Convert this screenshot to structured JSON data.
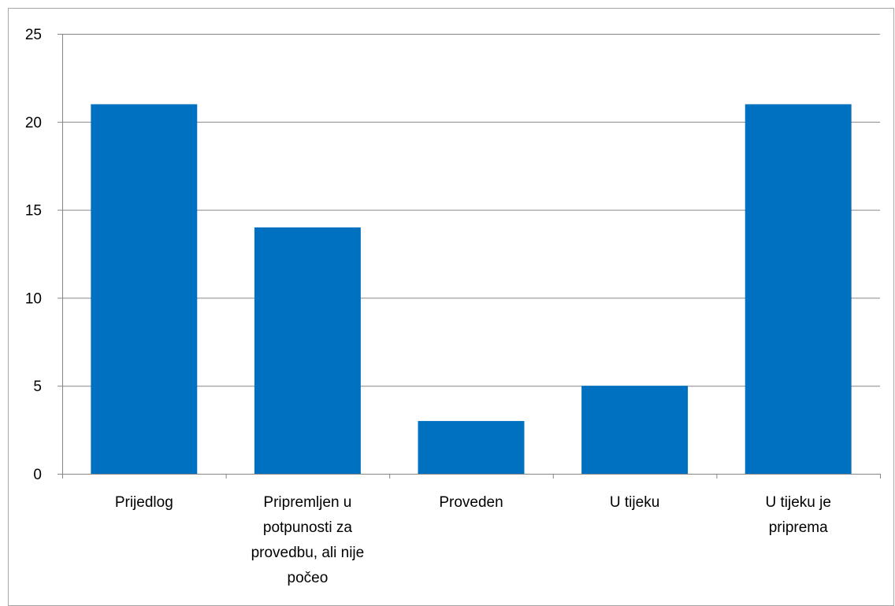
{
  "chart_data": {
    "type": "bar",
    "title": "",
    "xlabel": "",
    "ylabel": "",
    "categories": [
      "Prijedlog",
      "Pripremljen u potpunosti za provedbu, ali nije počeo",
      "Proveden",
      "U tijeku",
      "U tijeku je priprema"
    ],
    "category_lines": [
      [
        "Prijedlog"
      ],
      [
        "Pripremljen u",
        "potpunosti za",
        "provedbu, ali nije",
        "počeo"
      ],
      [
        "Proveden"
      ],
      [
        "U tijeku"
      ],
      [
        "U tijeku je",
        "priprema"
      ]
    ],
    "values": [
      21,
      14,
      3,
      5,
      21
    ],
    "ylim": [
      0,
      25
    ],
    "yticks": [
      0,
      5,
      10,
      15,
      20,
      25
    ],
    "grid": true,
    "legend": "none",
    "bar_color": "#0070c0",
    "grid_color": "#868686"
  }
}
